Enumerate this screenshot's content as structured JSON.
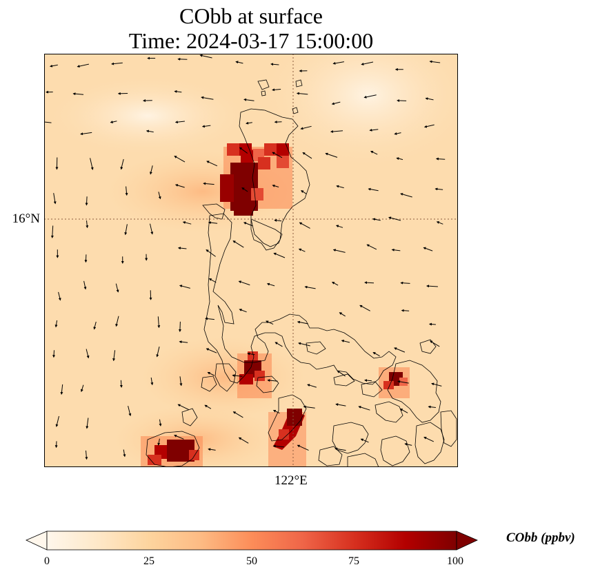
{
  "title": {
    "line1": "CObb at surface",
    "line2": "Time: 2024-03-17 15:00:00"
  },
  "axes": {
    "lat_tick": "16°N",
    "lon_tick": "122°E"
  },
  "colorbar": {
    "label": "CObb (ppbv)",
    "ticks": [
      "0",
      "25",
      "50",
      "75",
      "100"
    ],
    "min": 0,
    "max": 100,
    "colormap": "OrRd",
    "extend": "both"
  },
  "colors": {
    "background_field": "#fddcae",
    "low": "#fff7ec",
    "mid": "#f46d43",
    "high": "#7f0000",
    "coastline": "#000000",
    "gridline": "#8b5a3c"
  },
  "hotspots": [
    {
      "name": "northern-luzon-plume",
      "value": 100
    },
    {
      "name": "central-luzon-plume",
      "value": 95
    },
    {
      "name": "mindoro-plume",
      "value": 95
    },
    {
      "name": "palawan-plume",
      "value": 90
    },
    {
      "name": "bicol-plume",
      "value": 90
    }
  ]
}
